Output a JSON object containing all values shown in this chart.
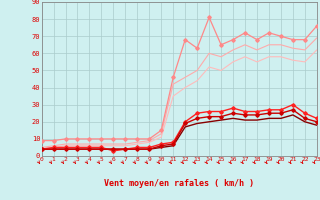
{
  "xlabel": "Vent moyen/en rafales ( km/h )",
  "bg_color": "#cff0f0",
  "grid_color": "#aacccc",
  "x": [
    0,
    1,
    2,
    3,
    4,
    5,
    6,
    7,
    8,
    9,
    10,
    11,
    12,
    13,
    14,
    15,
    16,
    17,
    18,
    19,
    20,
    21,
    22,
    23
  ],
  "series": [
    {
      "y": [
        9,
        9,
        10,
        10,
        10,
        10,
        10,
        10,
        10,
        10,
        15,
        46,
        68,
        63,
        81,
        65,
        68,
        72,
        68,
        72,
        70,
        68,
        68,
        76
      ],
      "color": "#ff8888",
      "lw": 0.9,
      "marker": "D",
      "ms": 1.8,
      "alpha": 1.0,
      "zorder": 4
    },
    {
      "y": [
        5,
        6,
        7,
        7,
        7,
        7,
        7,
        7,
        8,
        9,
        13,
        42,
        46,
        50,
        60,
        58,
        62,
        65,
        62,
        65,
        65,
        63,
        62,
        69
      ],
      "color": "#ffaaaa",
      "lw": 0.8,
      "marker": null,
      "ms": 0,
      "alpha": 1.0,
      "zorder": 3
    },
    {
      "y": [
        4,
        5,
        6,
        6,
        6,
        6,
        6,
        6,
        7,
        8,
        11,
        35,
        40,
        44,
        52,
        50,
        55,
        58,
        55,
        58,
        58,
        56,
        55,
        62
      ],
      "color": "#ffbbbb",
      "lw": 0.8,
      "marker": null,
      "ms": 0,
      "alpha": 1.0,
      "zorder": 2
    },
    {
      "y": [
        4,
        5,
        5,
        5,
        5,
        5,
        3,
        4,
        5,
        5,
        7,
        8,
        20,
        25,
        26,
        26,
        28,
        26,
        26,
        27,
        27,
        30,
        25,
        22
      ],
      "color": "#ff2222",
      "lw": 1.0,
      "marker": "D",
      "ms": 1.8,
      "alpha": 1.0,
      "zorder": 5
    },
    {
      "y": [
        4,
        4,
        4,
        4,
        4,
        4,
        4,
        4,
        4,
        4,
        6,
        7,
        19,
        22,
        23,
        23,
        25,
        24,
        24,
        25,
        25,
        27,
        22,
        20
      ],
      "color": "#cc0000",
      "lw": 1.0,
      "marker": "D",
      "ms": 1.8,
      "alpha": 1.0,
      "zorder": 5
    },
    {
      "y": [
        4,
        4,
        4,
        4,
        4,
        4,
        4,
        4,
        4,
        4,
        5,
        6,
        17,
        19,
        20,
        21,
        22,
        21,
        21,
        22,
        22,
        24,
        20,
        18
      ],
      "color": "#880000",
      "lw": 1.0,
      "marker": null,
      "ms": 0,
      "alpha": 1.0,
      "zorder": 3
    }
  ],
  "xlim": [
    0,
    23
  ],
  "ylim": [
    0,
    90
  ],
  "yticks": [
    0,
    10,
    20,
    30,
    40,
    50,
    60,
    70,
    80,
    90
  ],
  "xticks": [
    0,
    1,
    2,
    3,
    4,
    5,
    6,
    7,
    8,
    9,
    10,
    11,
    12,
    13,
    14,
    15,
    16,
    17,
    18,
    19,
    20,
    21,
    22,
    23
  ],
  "tick_color": "#dd0000",
  "label_color": "#dd0000",
  "axis_color": "#888888",
  "arrow_color": "#dd0000"
}
